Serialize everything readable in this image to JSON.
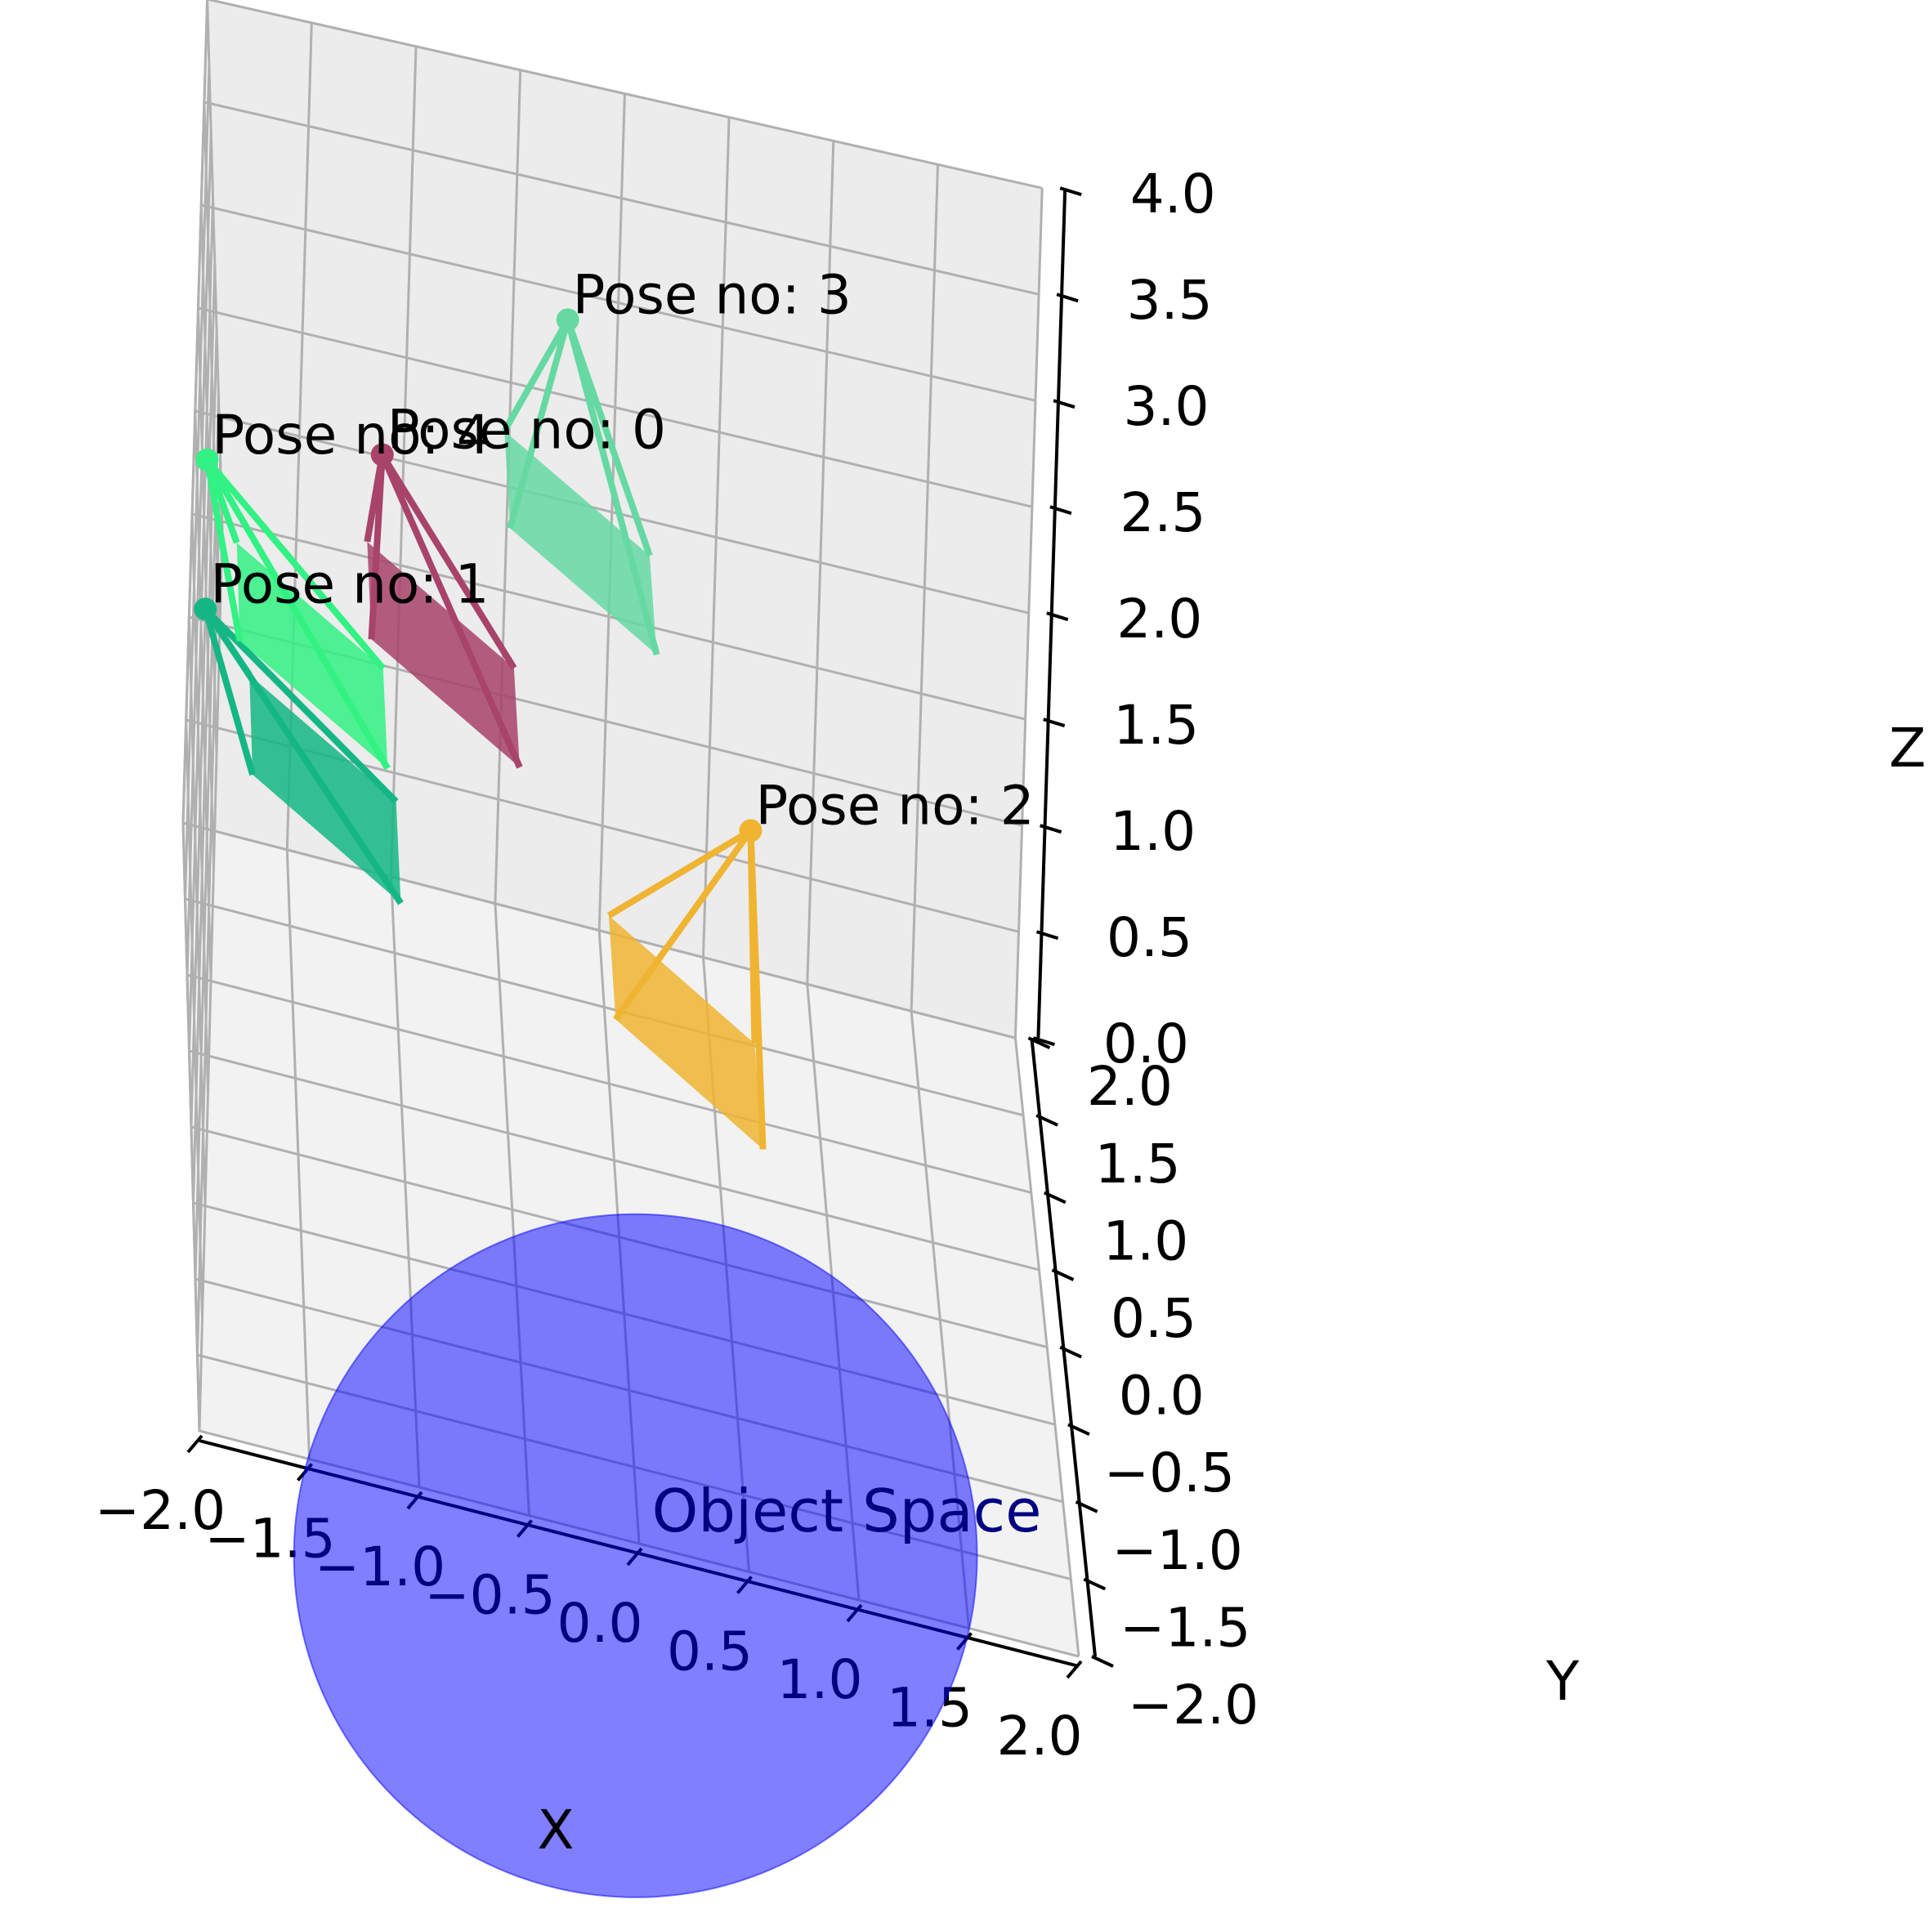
{
  "chart_data": {
    "type": "3d-scatter",
    "title": "",
    "xlabel": "X",
    "ylabel": "Y",
    "zlabel": "Z",
    "xlim": [
      -2.0,
      2.0
    ],
    "ylim": [
      -2.0,
      2.0
    ],
    "zlim": [
      0.0,
      4.0
    ],
    "x_ticks": [
      "−2.0",
      "−1.5",
      "−1.0",
      "−0.5",
      "0.0",
      "0.5",
      "1.0",
      "1.5",
      "2.0"
    ],
    "y_ticks": [
      "−2.0",
      "−1.5",
      "−1.0",
      "−0.5",
      "0.0",
      "0.5",
      "1.0",
      "1.5",
      "2.0"
    ],
    "z_ticks": [
      "0.0",
      "0.5",
      "1.0",
      "1.5",
      "2.0",
      "2.5",
      "3.0",
      "3.5",
      "4.0"
    ],
    "grid": true,
    "object": {
      "label": "Object Space",
      "shape": "sphere",
      "center": [
        0.0,
        0.0,
        0.0
      ],
      "radius": 1.0,
      "color": "#0000ff"
    },
    "poses": [
      {
        "label": "Pose no: 0",
        "index": 0,
        "apex": [
          -1.2,
          0.0,
          3.3
        ],
        "color": "#a8436a"
      },
      {
        "label": "Pose no: 1",
        "index": 1,
        "apex": [
          -2.0,
          0.0,
          2.4
        ],
        "color": "#14b784"
      },
      {
        "label": "Pose no: 2",
        "index": 2,
        "apex": [
          0.6,
          0.6,
          1.6
        ],
        "color": "#f0b433"
      },
      {
        "label": "Pose no: 3",
        "index": 3,
        "apex": [
          -0.3,
          1.0,
          3.5
        ],
        "color": "#66d9a3"
      },
      {
        "label": "Pose no: 4",
        "index": 4,
        "apex": [
          -2.0,
          0.3,
          2.9
        ],
        "color": "#31f283"
      }
    ]
  }
}
